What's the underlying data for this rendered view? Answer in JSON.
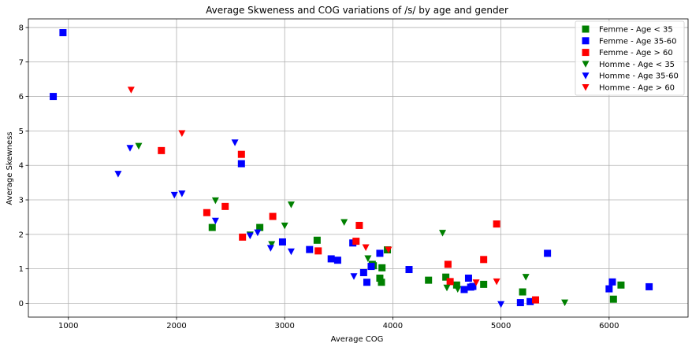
{
  "chart_data": {
    "type": "scatter",
    "title": "Average Skweness and COG variations of /s/ by age and gender",
    "xlabel": "Average COG",
    "ylabel": "Average Skewness",
    "xlim": [
      630,
      6730
    ],
    "ylim": [
      -0.4,
      8.25
    ],
    "xticks": [
      1000,
      2000,
      3000,
      4000,
      5000,
      6000
    ],
    "yticks": [
      0,
      1,
      2,
      3,
      4,
      5,
      6,
      7,
      8
    ],
    "grid": true,
    "legend_position": "upper-right",
    "series": [
      {
        "name": "Femme - Age < 35",
        "marker": "square",
        "color": "#008000",
        "points": [
          [
            2330,
            2.2
          ],
          [
            2770,
            2.2
          ],
          [
            3300,
            1.83
          ],
          [
            3810,
            1.13
          ],
          [
            3820,
            1.09
          ],
          [
            3880,
            0.73
          ],
          [
            3895,
            0.61
          ],
          [
            3900,
            1.03
          ],
          [
            3950,
            1.55
          ],
          [
            4330,
            0.67
          ],
          [
            4490,
            0.76
          ],
          [
            4590,
            0.53
          ],
          [
            4840,
            0.55
          ],
          [
            5200,
            0.33
          ],
          [
            6040,
            0.12
          ],
          [
            6110,
            0.53
          ]
        ]
      },
      {
        "name": "Femme - Age 35-60",
        "marker": "square",
        "color": "#0000ff",
        "points": [
          [
            860,
            6.0
          ],
          [
            950,
            7.85
          ],
          [
            2600,
            4.05
          ],
          [
            2980,
            1.78
          ],
          [
            3230,
            1.56
          ],
          [
            3430,
            1.29
          ],
          [
            3490,
            1.25
          ],
          [
            3630,
            1.75
          ],
          [
            3730,
            0.89
          ],
          [
            3760,
            0.61
          ],
          [
            3800,
            1.07
          ],
          [
            3880,
            1.45
          ],
          [
            4150,
            0.98
          ],
          [
            4660,
            0.4
          ],
          [
            4700,
            0.73
          ],
          [
            4720,
            0.47
          ],
          [
            4740,
            0.49
          ],
          [
            5180,
            0.02
          ],
          [
            5270,
            0.05
          ],
          [
            5430,
            1.45
          ],
          [
            6000,
            0.42
          ],
          [
            6030,
            0.62
          ],
          [
            6370,
            0.48
          ]
        ]
      },
      {
        "name": "Femme - Age > 60",
        "marker": "square",
        "color": "#ff0000",
        "points": [
          [
            1860,
            4.43
          ],
          [
            2280,
            2.63
          ],
          [
            2450,
            2.81
          ],
          [
            2600,
            4.32
          ],
          [
            2610,
            1.92
          ],
          [
            2890,
            2.52
          ],
          [
            3310,
            1.52
          ],
          [
            3660,
            1.8
          ],
          [
            3690,
            2.26
          ],
          [
            4510,
            1.13
          ],
          [
            4530,
            0.63
          ],
          [
            4840,
            1.27
          ],
          [
            4960,
            2.3
          ],
          [
            5320,
            0.1
          ]
        ]
      },
      {
        "name": "Homme - Age < 35",
        "marker": "triangle-down",
        "color": "#008000",
        "points": [
          [
            1650,
            4.56
          ],
          [
            2360,
            2.98
          ],
          [
            2680,
            1.99
          ],
          [
            2880,
            1.71
          ],
          [
            3000,
            2.25
          ],
          [
            3060,
            2.86
          ],
          [
            3550,
            2.35
          ],
          [
            3770,
            1.3
          ],
          [
            4460,
            2.04
          ],
          [
            4500,
            0.45
          ],
          [
            4600,
            0.41
          ],
          [
            5230,
            0.76
          ],
          [
            5590,
            0.02
          ]
        ]
      },
      {
        "name": "Homme - Age 35-60",
        "marker": "triangle-down",
        "color": "#0000ff",
        "points": [
          [
            1460,
            3.75
          ],
          [
            1570,
            4.5
          ],
          [
            1980,
            3.14
          ],
          [
            2050,
            3.18
          ],
          [
            2360,
            2.39
          ],
          [
            2540,
            4.66
          ],
          [
            2680,
            1.96
          ],
          [
            2750,
            2.05
          ],
          [
            2870,
            1.6
          ],
          [
            3060,
            1.5
          ],
          [
            3640,
            0.78
          ],
          [
            5000,
            -0.03
          ]
        ]
      },
      {
        "name": "Homme - Age > 60",
        "marker": "triangle-down",
        "color": "#ff0000",
        "points": [
          [
            1580,
            6.19
          ],
          [
            2050,
            4.93
          ],
          [
            3750,
            1.62
          ],
          [
            3960,
            1.55
          ],
          [
            4770,
            0.6
          ],
          [
            4960,
            0.63
          ]
        ]
      }
    ]
  }
}
